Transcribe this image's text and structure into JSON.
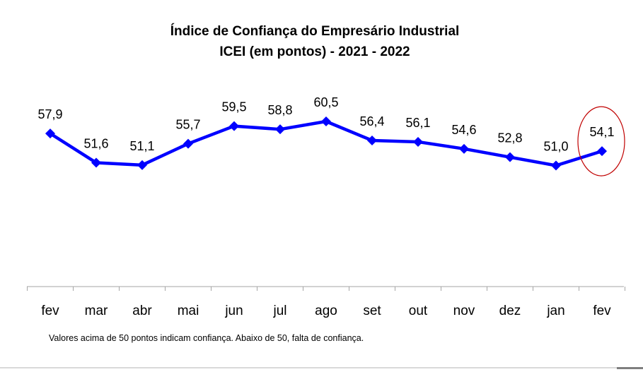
{
  "chart_data": {
    "type": "line",
    "title_line1": "Índice de Confiança do Empresário Industrial",
    "title_line2": "ICEI (em pontos) - 2021 - 2022",
    "categories": [
      "fev",
      "mar",
      "abr",
      "mai",
      "jun",
      "jul",
      "ago",
      "set",
      "out",
      "nov",
      "dez",
      "jan",
      "fev"
    ],
    "series": [
      {
        "values": [
          57.9,
          51.6,
          51.1,
          55.7,
          59.5,
          58.8,
          60.5,
          56.4,
          56.1,
          54.6,
          52.8,
          51.0,
          54.1
        ],
        "labels": [
          "57,9",
          "51,6",
          "51,1",
          "55,7",
          "59,5",
          "58,8",
          "60,5",
          "56,4",
          "56,1",
          "54,6",
          "52,8",
          "51,0",
          "54,1"
        ],
        "color": "#0000ff"
      }
    ],
    "highlight_index": 12,
    "highlight_color": "#c00000",
    "grid": false,
    "legend": "none",
    "note": "Valores acima de 50 pontos indicam confiança. Abaixo de 50, falta de confiança."
  }
}
